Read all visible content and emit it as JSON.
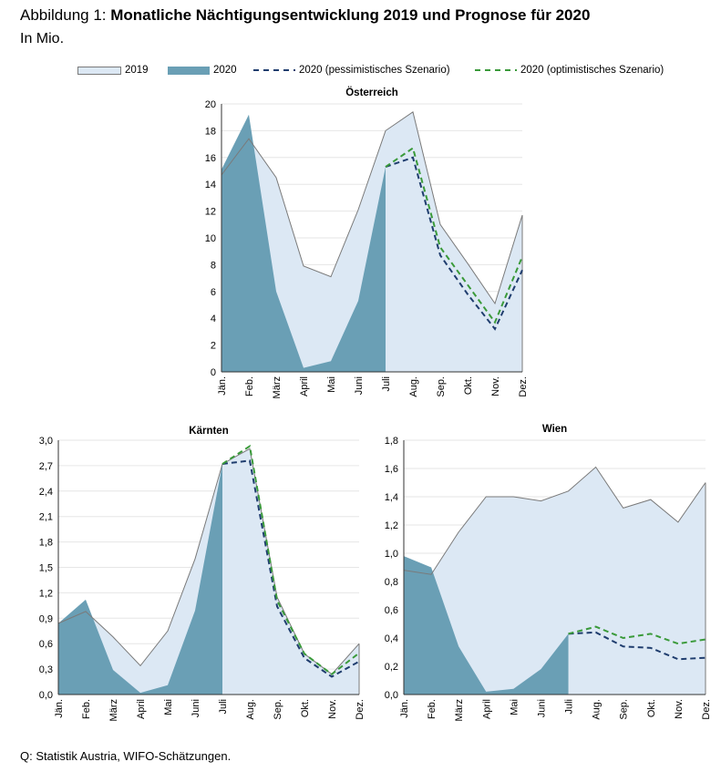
{
  "header": {
    "title_prefix": "Abbildung 1: ",
    "title_bold": "Monatliche Nächtigungsentwicklung 2019 und Prognose für 2020",
    "subtitle": "In Mio."
  },
  "legend": [
    {
      "label": "2019",
      "kind": "area",
      "color": "#dce8f4"
    },
    {
      "label": "2020",
      "kind": "area",
      "color": "#6a9fb5"
    },
    {
      "label": "2020 (pessimistisches Szenario)",
      "kind": "dash",
      "color": "#1f3d6e"
    },
    {
      "label": "2020 (optimistisches Szenario)",
      "kind": "dash",
      "color": "#3a9a3a"
    }
  ],
  "source": "Q: Statistik Austria, WIFO-Schätzungen.",
  "colors": {
    "fill2019": "#dce8f4",
    "fill2020": "#6a9fb5",
    "pess": "#1f3d6e",
    "opt": "#3a9a3a",
    "line2019": "#7a7a7a"
  },
  "chart_data": [
    {
      "type": "area",
      "title": "Österreich",
      "categories": [
        "Jän.",
        "Feb.",
        "März",
        "April",
        "Mai",
        "Juni",
        "Juli",
        "Aug.",
        "Sep.",
        "Okt.",
        "Nov.",
        "Dez."
      ],
      "ylim": [
        0,
        20
      ],
      "yticks": [
        "0",
        "2",
        "4",
        "6",
        "8",
        "10",
        "12",
        "14",
        "16",
        "18",
        "20"
      ],
      "series": [
        {
          "name": "2019",
          "values": [
            14.7,
            17.4,
            14.5,
            7.9,
            7.1,
            12.1,
            18.0,
            19.4,
            11.0,
            8.1,
            5.1,
            11.7
          ]
        },
        {
          "name": "2020",
          "values": [
            15.1,
            19.2,
            6.0,
            0.3,
            0.8,
            5.3,
            15.3,
            null,
            null,
            null,
            null,
            null
          ]
        },
        {
          "name": "2020 (pessimistisches Szenario)",
          "values": [
            null,
            null,
            null,
            null,
            null,
            null,
            15.3,
            16.0,
            8.7,
            5.8,
            3.2,
            7.6
          ]
        },
        {
          "name": "2020 (optimistisches Szenario)",
          "values": [
            null,
            null,
            null,
            null,
            null,
            null,
            15.3,
            16.7,
            9.3,
            6.5,
            3.7,
            8.6
          ]
        }
      ]
    },
    {
      "type": "area",
      "title": "Kärnten",
      "categories": [
        "Jän.",
        "Feb.",
        "März",
        "April",
        "Mai",
        "Juni",
        "Juli",
        "Aug.",
        "Sep.",
        "Okt.",
        "Nov.",
        "Dez."
      ],
      "ylim": [
        0,
        3.0
      ],
      "yticks": [
        "0,0",
        "0,3",
        "0,6",
        "0,9",
        "1,2",
        "1,5",
        "1,8",
        "2,1",
        "2,4",
        "2,7",
        "3,0"
      ],
      "series": [
        {
          "name": "2019",
          "values": [
            0.84,
            0.98,
            0.68,
            0.34,
            0.75,
            1.6,
            2.72,
            2.9,
            1.15,
            0.48,
            0.24,
            0.6
          ]
        },
        {
          "name": "2020",
          "values": [
            0.84,
            1.12,
            0.29,
            0.02,
            0.11,
            0.99,
            2.72,
            null,
            null,
            null,
            null,
            null
          ]
        },
        {
          "name": "2020 (pessimistisches Szenario)",
          "values": [
            null,
            null,
            null,
            null,
            null,
            null,
            2.72,
            2.76,
            1.04,
            0.43,
            0.21,
            0.39
          ]
        },
        {
          "name": "2020 (optimistisches Szenario)",
          "values": [
            null,
            null,
            null,
            null,
            null,
            null,
            2.72,
            2.93,
            1.11,
            0.48,
            0.24,
            0.49
          ]
        }
      ]
    },
    {
      "type": "area",
      "title": "Wien",
      "categories": [
        "Jän.",
        "Feb.",
        "März",
        "April",
        "Mai",
        "Juni",
        "Juli",
        "Aug.",
        "Sep.",
        "Okt.",
        "Nov.",
        "Dez."
      ],
      "ylim": [
        0,
        1.8
      ],
      "yticks": [
        "0,0",
        "0,2",
        "0,4",
        "0,6",
        "0,8",
        "1,0",
        "1,2",
        "1,4",
        "1,6",
        "1,8"
      ],
      "series": [
        {
          "name": "2019",
          "values": [
            0.88,
            0.85,
            1.15,
            1.4,
            1.4,
            1.37,
            1.44,
            1.61,
            1.32,
            1.38,
            1.22,
            1.5
          ]
        },
        {
          "name": "2020",
          "values": [
            0.98,
            0.9,
            0.34,
            0.02,
            0.04,
            0.18,
            0.43,
            null,
            null,
            null,
            null,
            null
          ]
        },
        {
          "name": "2020 (pessimistisches Szenario)",
          "values": [
            null,
            null,
            null,
            null,
            null,
            null,
            0.43,
            0.44,
            0.34,
            0.33,
            0.25,
            0.26
          ]
        },
        {
          "name": "2020 (optimistisches Szenario)",
          "values": [
            null,
            null,
            null,
            null,
            null,
            null,
            0.43,
            0.48,
            0.4,
            0.43,
            0.36,
            0.39
          ]
        }
      ]
    }
  ]
}
